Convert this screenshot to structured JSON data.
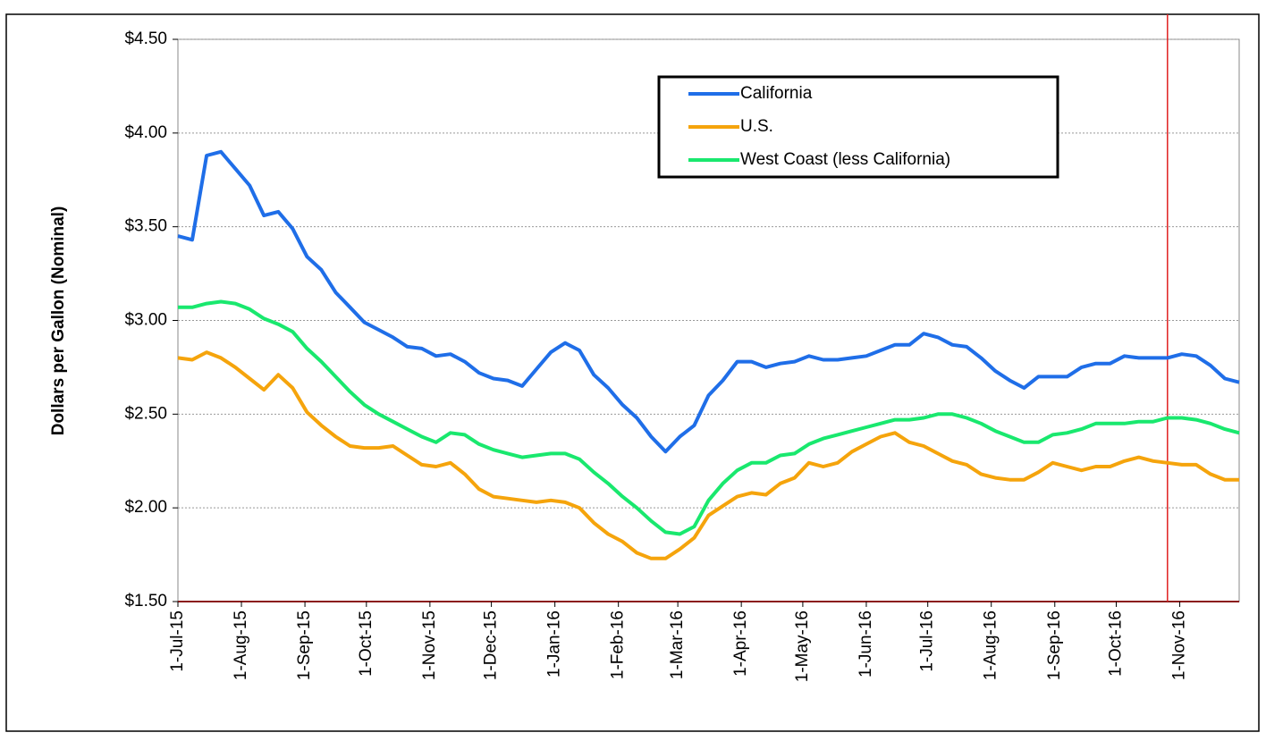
{
  "chart_data": {
    "type": "line",
    "y_label": "Dollars per Gallon (Nominal)",
    "x": [
      "1-Jul-15",
      "8-Jul-15",
      "15-Jul-15",
      "22-Jul-15",
      "29-Jul-15",
      "5-Aug-15",
      "12-Aug-15",
      "19-Aug-15",
      "26-Aug-15",
      "2-Sep-15",
      "9-Sep-15",
      "16-Sep-15",
      "23-Sep-15",
      "30-Sep-15",
      "7-Oct-15",
      "14-Oct-15",
      "21-Oct-15",
      "28-Oct-15",
      "4-Nov-15",
      "11-Nov-15",
      "18-Nov-15",
      "25-Nov-15",
      "2-Dec-15",
      "9-Dec-15",
      "16-Dec-15",
      "23-Dec-15",
      "30-Dec-15",
      "6-Jan-16",
      "13-Jan-16",
      "20-Jan-16",
      "27-Jan-16",
      "3-Feb-16",
      "10-Feb-16",
      "17-Feb-16",
      "24-Feb-16",
      "2-Mar-16",
      "9-Mar-16",
      "16-Mar-16",
      "23-Mar-16",
      "30-Mar-16",
      "6-Apr-16",
      "13-Apr-16",
      "20-Apr-16",
      "27-Apr-16",
      "4-May-16",
      "11-May-16",
      "18-May-16",
      "25-May-16",
      "1-Jun-16",
      "8-Jun-16",
      "15-Jun-16",
      "22-Jun-16",
      "29-Jun-16",
      "6-Jul-16",
      "13-Jul-16",
      "20-Jul-16",
      "27-Jul-16",
      "3-Aug-16",
      "10-Aug-16",
      "17-Aug-16",
      "24-Aug-16",
      "31-Aug-16",
      "7-Sep-16",
      "14-Sep-16",
      "21-Sep-16",
      "28-Sep-16",
      "5-Oct-16",
      "12-Oct-16",
      "19-Oct-16",
      "26-Oct-16",
      "2-Nov-16",
      "9-Nov-16",
      "16-Nov-16",
      "23-Nov-16",
      "30-Nov-16"
    ],
    "series": [
      {
        "name": "California",
        "color": "#1f6ee8",
        "values": [
          3.45,
          3.43,
          3.88,
          3.9,
          3.81,
          3.72,
          3.56,
          3.58,
          3.49,
          3.34,
          3.27,
          3.15,
          3.07,
          2.99,
          2.95,
          2.91,
          2.86,
          2.85,
          2.81,
          2.82,
          2.78,
          2.72,
          2.69,
          2.68,
          2.65,
          2.74,
          2.83,
          2.88,
          2.84,
          2.71,
          2.64,
          2.55,
          2.48,
          2.38,
          2.3,
          2.38,
          2.44,
          2.6,
          2.68,
          2.78,
          2.78,
          2.75,
          2.77,
          2.78,
          2.81,
          2.79,
          2.79,
          2.8,
          2.81,
          2.84,
          2.87,
          2.87,
          2.93,
          2.91,
          2.87,
          2.86,
          2.8,
          2.73,
          2.68,
          2.64,
          2.7,
          2.7,
          2.7,
          2.75,
          2.77,
          2.77,
          2.81,
          2.8,
          2.8,
          2.8,
          2.82,
          2.81,
          2.76,
          2.69,
          2.67
        ]
      },
      {
        "name": "U.S.",
        "color": "#f5a40c",
        "values": [
          2.8,
          2.79,
          2.83,
          2.8,
          2.75,
          2.69,
          2.63,
          2.71,
          2.64,
          2.51,
          2.44,
          2.38,
          2.33,
          2.32,
          2.32,
          2.33,
          2.28,
          2.23,
          2.22,
          2.24,
          2.18,
          2.1,
          2.06,
          2.05,
          2.04,
          2.03,
          2.04,
          2.03,
          2.0,
          1.92,
          1.86,
          1.82,
          1.76,
          1.73,
          1.73,
          1.78,
          1.84,
          1.96,
          2.01,
          2.06,
          2.08,
          2.07,
          2.13,
          2.16,
          2.24,
          2.22,
          2.24,
          2.3,
          2.34,
          2.38,
          2.4,
          2.35,
          2.33,
          2.29,
          2.25,
          2.23,
          2.18,
          2.16,
          2.15,
          2.15,
          2.19,
          2.24,
          2.22,
          2.2,
          2.22,
          2.22,
          2.25,
          2.27,
          2.25,
          2.24,
          2.23,
          2.23,
          2.18,
          2.15,
          2.15
        ]
      },
      {
        "name": "West Coast (less California)",
        "color": "#19e86e",
        "values": [
          3.07,
          3.07,
          3.09,
          3.1,
          3.09,
          3.06,
          3.01,
          2.98,
          2.94,
          2.85,
          2.78,
          2.7,
          2.62,
          2.55,
          2.5,
          2.46,
          2.42,
          2.38,
          2.35,
          2.4,
          2.39,
          2.34,
          2.31,
          2.29,
          2.27,
          2.28,
          2.29,
          2.29,
          2.26,
          2.19,
          2.13,
          2.06,
          2.0,
          1.93,
          1.87,
          1.86,
          1.9,
          2.04,
          2.13,
          2.2,
          2.24,
          2.24,
          2.28,
          2.29,
          2.34,
          2.37,
          2.39,
          2.41,
          2.43,
          2.45,
          2.47,
          2.47,
          2.48,
          2.5,
          2.5,
          2.48,
          2.45,
          2.41,
          2.38,
          2.35,
          2.35,
          2.39,
          2.4,
          2.42,
          2.45,
          2.45,
          2.45,
          2.46,
          2.46,
          2.48,
          2.48,
          2.47,
          2.45,
          2.42,
          2.4
        ]
      }
    ],
    "xlim": [
      "1-Jul-15",
      "30-Nov-16"
    ],
    "xticks": [
      "1-Jul-15",
      "1-Aug-15",
      "1-Sep-15",
      "1-Oct-15",
      "1-Nov-15",
      "1-Dec-15",
      "1-Jan-16",
      "1-Feb-16",
      "1-Mar-16",
      "1-Apr-16",
      "1-May-16",
      "1-Jun-16",
      "1-Jul-16",
      "1-Aug-16",
      "1-Sep-16",
      "1-Oct-16",
      "1-Nov-16"
    ],
    "ylim": [
      1.5,
      4.5
    ],
    "yticks": [
      {
        "value": 1.5,
        "label": "$1.50"
      },
      {
        "value": 2.0,
        "label": "$2.00"
      },
      {
        "value": 2.5,
        "label": "$2.50"
      },
      {
        "value": 3.0,
        "label": "$3.00"
      },
      {
        "value": 3.5,
        "label": "$3.50"
      },
      {
        "value": 4.0,
        "label": "$4.00"
      },
      {
        "value": 4.5,
        "label": "$4.50"
      }
    ],
    "grid": true,
    "legend": "top-right",
    "marker_x": "26-Oct-16",
    "marker_color": "#e02020"
  }
}
